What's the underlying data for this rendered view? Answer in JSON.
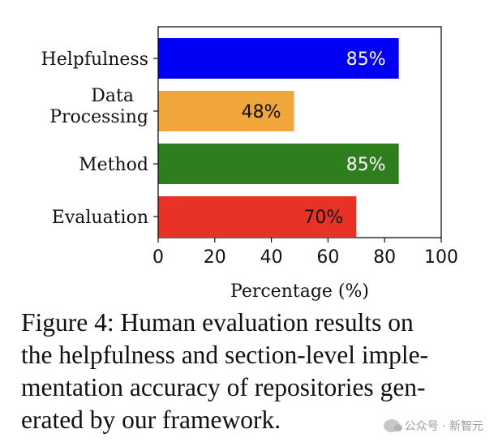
{
  "chart_data": {
    "type": "bar",
    "orientation": "horizontal",
    "categories": [
      "Helpfulness",
      "Data Processing",
      "Method",
      "Evaluation"
    ],
    "values": [
      85,
      48,
      85,
      70
    ],
    "data_labels": [
      "85%",
      "48%",
      "85%",
      "70%"
    ],
    "colors": [
      "#0000f5",
      "#f0a63a",
      "#2e7d1e",
      "#e73225"
    ],
    "label_colors": [
      "#ffffff",
      "#111111",
      "#ffffff",
      "#111111"
    ],
    "xlabel": "Percentage (%)",
    "ylabel": "",
    "xlim": [
      0,
      100
    ],
    "xticks": [
      0,
      20,
      40,
      60,
      80,
      100
    ],
    "grid": false
  },
  "caption": {
    "lines": [
      "Figure 4: Human evaluation results on",
      "the helpfulness and section-level imple-",
      "mentation accuracy of repositories gen-",
      "erated by our framework."
    ]
  },
  "watermark": {
    "text": "公众号 · 新智元",
    "icon": "wechat-icon"
  }
}
